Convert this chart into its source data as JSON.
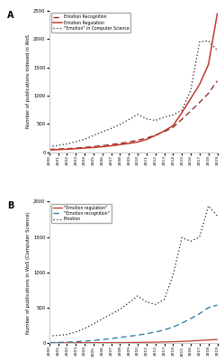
{
  "years": [
    2000,
    2001,
    2002,
    2003,
    2004,
    2005,
    2006,
    2007,
    2008,
    2009,
    2010,
    2011,
    2012,
    2013,
    2014,
    2015,
    2016,
    2017,
    2018,
    2019
  ],
  "A_emotion_recognition": [
    50,
    55,
    62,
    72,
    85,
    100,
    115,
    135,
    155,
    180,
    210,
    250,
    300,
    360,
    440,
    580,
    730,
    880,
    1040,
    1260
  ],
  "A_emotion_regulation": [
    40,
    45,
    52,
    62,
    72,
    83,
    97,
    112,
    133,
    155,
    180,
    225,
    295,
    375,
    470,
    700,
    950,
    1200,
    1550,
    2450
  ],
  "A_emotion_cs": [
    100,
    120,
    145,
    185,
    230,
    295,
    360,
    420,
    490,
    575,
    670,
    590,
    560,
    620,
    660,
    740,
    1100,
    1950,
    1970,
    1800
  ],
  "B_emotion_regulation": [
    2,
    2,
    3,
    3,
    4,
    4,
    5,
    5,
    6,
    7,
    8,
    10,
    12,
    14,
    18,
    22,
    28,
    35,
    42,
    50
  ],
  "B_emotion_recognition": [
    5,
    8,
    12,
    18,
    25,
    35,
    48,
    62,
    78,
    95,
    110,
    130,
    155,
    185,
    225,
    280,
    345,
    415,
    500,
    535
  ],
  "B_emotion": [
    100,
    108,
    120,
    155,
    205,
    270,
    340,
    410,
    475,
    570,
    665,
    580,
    545,
    615,
    960,
    1490,
    1440,
    1500,
    1940,
    1800
  ],
  "A_ylim": [
    0,
    2500
  ],
  "A_yticks": [
    0,
    500,
    1000,
    1500,
    2000,
    2500
  ],
  "B_ylim": [
    0,
    2000
  ],
  "B_yticks": [
    0,
    500,
    1000,
    1500,
    2000
  ],
  "color_red": "#c0392b",
  "color_dark_red": "#8b1a1a",
  "color_black": "#1a1a1a",
  "color_blue": "#2471a3",
  "A_label_recog": "Emotion Recognition",
  "A_label_regul": "Emotion Regulation",
  "A_label_cs": "\"Emotion\" in Computer Science",
  "A_ylabel": "Number of publications indexed in WoS",
  "B_label_regul": "\"Emotion regulation\"",
  "B_label_recog": "\"Emotion recognition\"",
  "B_label_em": "Emotion",
  "B_ylabel": "Number of publications in WoS (Computer Science)",
  "panel_A": "A",
  "panel_B": "B",
  "bg_color": "#ffffff",
  "fig_bg": "#ffffff"
}
